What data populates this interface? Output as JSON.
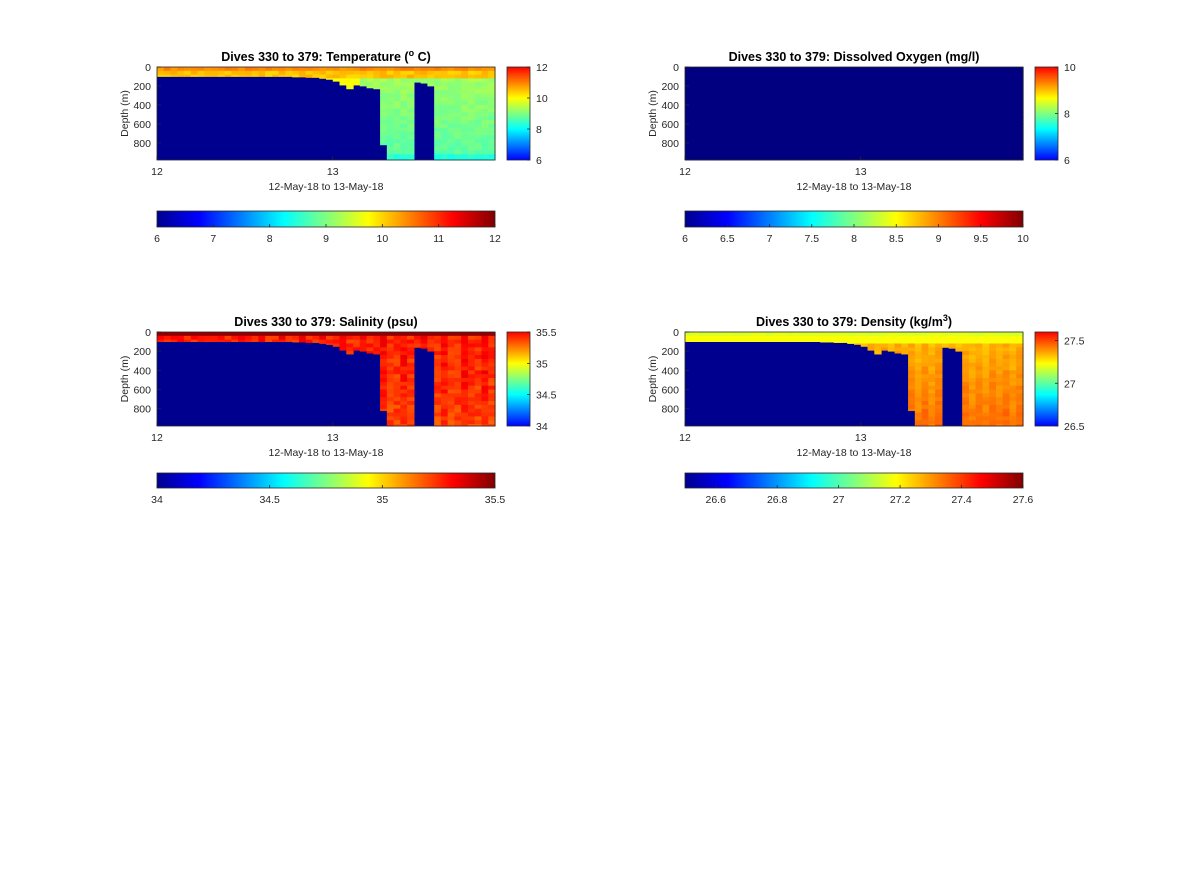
{
  "chart_data": [
    {
      "type": "heatmap",
      "title": "Dives 330 to 379: Temperature (",
      "title_sup": "o",
      "title_suffix": " C)",
      "xlabel": "12-May-18 to 13-May-18",
      "ylabel": "Depth (m)",
      "x_ticks": [
        "12",
        "13"
      ],
      "x_tick_positions": [
        0,
        0.52
      ],
      "y_ticks": [
        "0",
        "200",
        "400",
        "600",
        "800"
      ],
      "y_tick_values": [
        0,
        200,
        400,
        600,
        800
      ],
      "ylim": [
        0,
        980
      ],
      "y_reversed": true,
      "clim": [
        6,
        12
      ],
      "side_colorbar_ticks": [
        "12",
        "10",
        "8",
        "6"
      ],
      "side_colorbar_values": [
        12,
        10,
        8,
        6
      ],
      "bottom_colorbar_ticks": [
        "6",
        "7",
        "8",
        "9",
        "10",
        "11",
        "12"
      ],
      "bottom_colorbar_values": [
        6,
        7,
        8,
        9,
        10,
        11,
        12
      ],
      "field": "temperature"
    },
    {
      "type": "heatmap",
      "title": "Dives 330 to 379: Dissolved Oxygen (mg/l)",
      "title_sup": "",
      "title_suffix": "",
      "xlabel": "12-May-18 to 13-May-18",
      "ylabel": "Depth (m)",
      "x_ticks": [
        "12",
        "13"
      ],
      "x_tick_positions": [
        0,
        0.52
      ],
      "y_ticks": [
        "0",
        "200",
        "400",
        "600",
        "800"
      ],
      "y_tick_values": [
        0,
        200,
        400,
        600,
        800
      ],
      "ylim": [
        0,
        980
      ],
      "y_reversed": true,
      "clim": [
        6,
        10
      ],
      "side_colorbar_ticks": [
        "10",
        "8",
        "6"
      ],
      "side_colorbar_values": [
        10,
        8,
        6
      ],
      "bottom_colorbar_ticks": [
        "6",
        "6.5",
        "7",
        "7.5",
        "8",
        "8.5",
        "9",
        "9.5",
        "10"
      ],
      "bottom_colorbar_values": [
        6,
        6.5,
        7,
        7.5,
        8,
        8.5,
        9,
        9.5,
        10
      ],
      "field": "oxygen"
    },
    {
      "type": "heatmap",
      "title": "Dives 330 to 379: Salinity (psu)",
      "title_sup": "",
      "title_suffix": "",
      "xlabel": "12-May-18 to 13-May-18",
      "ylabel": "Depth (m)",
      "x_ticks": [
        "12",
        "13"
      ],
      "x_tick_positions": [
        0,
        0.52
      ],
      "y_ticks": [
        "0",
        "200",
        "400",
        "600",
        "800"
      ],
      "y_tick_values": [
        0,
        200,
        400,
        600,
        800
      ],
      "ylim": [
        0,
        980
      ],
      "y_reversed": true,
      "clim": [
        34,
        35.5
      ],
      "side_colorbar_ticks": [
        "35.5",
        "35",
        "34.5",
        "34"
      ],
      "side_colorbar_values": [
        35.5,
        35,
        34.5,
        34
      ],
      "bottom_colorbar_ticks": [
        "34",
        "34.5",
        "35",
        "35.5"
      ],
      "bottom_colorbar_values": [
        34,
        34.5,
        35,
        35.5
      ],
      "field": "salinity"
    },
    {
      "type": "heatmap",
      "title": "Dives 330 to 379: Density (kg/m",
      "title_sup": "3",
      "title_suffix": ")",
      "xlabel": "12-May-18 to 13-May-18",
      "ylabel": "Depth (m)",
      "x_ticks": [
        "12",
        "13"
      ],
      "x_tick_positions": [
        0,
        0.52
      ],
      "y_ticks": [
        "0",
        "200",
        "400",
        "600",
        "800"
      ],
      "y_tick_values": [
        0,
        200,
        400,
        600,
        800
      ],
      "ylim": [
        0,
        980
      ],
      "y_reversed": true,
      "clim": [
        26.5,
        27.6
      ],
      "side_colorbar_ticks": [
        "27.5",
        "27",
        "26.5"
      ],
      "side_colorbar_values": [
        27.5,
        27,
        26.5
      ],
      "bottom_colorbar_ticks": [
        "26.6",
        "26.8",
        "27",
        "27.2",
        "27.4",
        "27.6"
      ],
      "bottom_colorbar_values": [
        26.6,
        26.8,
        27,
        27.2,
        27.4,
        27.6
      ],
      "field": "density"
    }
  ],
  "profile_bottom_depth_m": [
    100,
    100,
    100,
    100,
    100,
    100,
    100,
    100,
    100,
    100,
    100,
    100,
    100,
    100,
    100,
    100,
    100,
    100,
    100,
    100,
    105,
    105,
    110,
    110,
    120,
    130,
    150,
    190,
    230,
    190,
    200,
    220,
    230,
    240,
    980,
    980,
    980,
    980,
    160,
    170,
    200,
    980,
    980,
    980,
    980,
    980,
    980,
    980,
    980,
    980
  ],
  "profile_max_depth_m": [
    0,
    0,
    0,
    0,
    0,
    0,
    0,
    0,
    0,
    0,
    0,
    0,
    0,
    0,
    0,
    0,
    0,
    0,
    0,
    0,
    0,
    0,
    0,
    0,
    0,
    0,
    0,
    0,
    0,
    0,
    0,
    0,
    0,
    820,
    980,
    980,
    980,
    980,
    0,
    0,
    0,
    980,
    980,
    980,
    980,
    980,
    980,
    980,
    980,
    980
  ]
}
